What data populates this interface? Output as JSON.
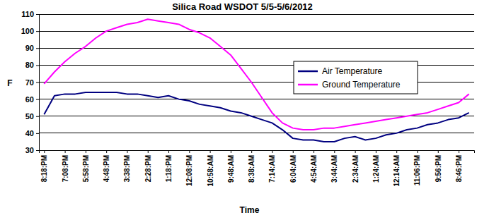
{
  "chart_data": {
    "type": "line",
    "title": "Silica Road WSDOT 5/5-5/6/2012",
    "x_label": "Time",
    "y_label": "F",
    "categories": [
      "8:18:PM",
      null,
      "7:08:PM",
      null,
      "5:58:PM",
      null,
      "4:48:PM",
      null,
      "3:38:PM",
      null,
      "2:28:PM",
      null,
      "1:18:PM",
      null,
      "12:08:PM",
      null,
      "10:58:AM",
      null,
      "9:48:AM",
      null,
      "8:38:AM",
      null,
      "7:14:AM",
      null,
      "6:04:AM",
      null,
      "4:54:AM",
      null,
      "3:44:AM",
      null,
      "2:34:AM",
      null,
      "1:24:AM",
      null,
      "12:14:AM",
      null,
      "11:06:PM",
      null,
      "9:56:PM",
      null,
      "8:46:PM",
      null
    ],
    "series": [
      {
        "name": "Air Temperature",
        "color": "#000080",
        "values": [
          51,
          62,
          63,
          63,
          64,
          64,
          64,
          64,
          63,
          63,
          62,
          61,
          62,
          60,
          59,
          57,
          56,
          55,
          53,
          52,
          50,
          48,
          46,
          42,
          37,
          36,
          36,
          35,
          35,
          37,
          38,
          36,
          37,
          39,
          40,
          42,
          43,
          45,
          46,
          48,
          49,
          52
        ]
      },
      {
        "name": "Ground Temperature",
        "color": "#ff00ff",
        "values": [
          69,
          76,
          82,
          87,
          91,
          96,
          100,
          102,
          104,
          105,
          107,
          106,
          105,
          104,
          101,
          99,
          96,
          91,
          86,
          78,
          70,
          61,
          52,
          46,
          43,
          42,
          42,
          43,
          43,
          44,
          45,
          46,
          47,
          48,
          49,
          50,
          51,
          52,
          54,
          56,
          58,
          63
        ]
      }
    ],
    "ylim": [
      30,
      110
    ],
    "yticks": [
      30,
      40,
      50,
      60,
      70,
      80,
      90,
      100,
      110
    ],
    "grid": true,
    "legend": "right"
  }
}
